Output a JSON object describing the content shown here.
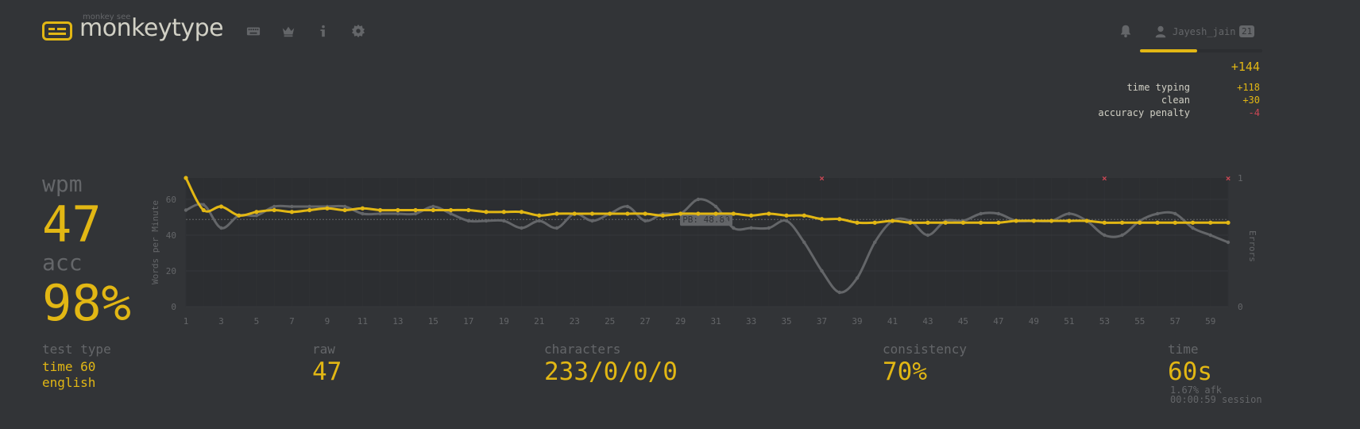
{
  "header": {
    "logo_small": "monkey see",
    "logo_text": "monkeytype",
    "nav_icons": [
      "keyboard-icon",
      "crown-icon",
      "info-icon",
      "gear-icon"
    ],
    "notification_icon": "bell-icon",
    "user_icon": "user-icon",
    "username": "Jayesh_jain",
    "level": "21",
    "xp_progress": 0.47
  },
  "xp": {
    "total": "+144",
    "breakdown": [
      {
        "label": "time typing",
        "value": "+118"
      },
      {
        "label": "clean",
        "value": "+30"
      },
      {
        "label": "accuracy penalty",
        "value": "-4"
      }
    ]
  },
  "result": {
    "wpm_label": "wpm",
    "wpm": "47",
    "acc_label": "acc",
    "acc": "98%",
    "test_type_label": "test type",
    "test_type_lines": [
      "time 60",
      "english"
    ],
    "raw_label": "raw",
    "raw": "47",
    "characters_label": "characters",
    "characters": "233/0/0/0",
    "consistency_label": "consistency",
    "consistency": "70%",
    "time_label": "time",
    "time": "60s",
    "afk": "1.67% afk",
    "session": "00:00:59 session"
  },
  "colors": {
    "bg": "#323437",
    "main": "#e2b714",
    "sub": "#646669",
    "text": "#d1d0c5",
    "error": "#ca4754"
  },
  "chart_data": {
    "type": "line",
    "ylabel": "Words per Minute",
    "y2label": "Errors",
    "ylim": [
      0,
      72
    ],
    "y_ticks": [
      "0",
      "20",
      "40",
      "60"
    ],
    "y2_ticks": [
      "0",
      "1"
    ],
    "x": [
      1,
      2,
      3,
      4,
      5,
      6,
      7,
      8,
      9,
      10,
      11,
      12,
      13,
      14,
      15,
      16,
      17,
      18,
      19,
      20,
      21,
      22,
      23,
      24,
      25,
      26,
      27,
      28,
      29,
      30,
      31,
      32,
      33,
      34,
      35,
      36,
      37,
      38,
      39,
      40,
      41,
      42,
      43,
      44,
      45,
      46,
      47,
      48,
      49,
      50,
      51,
      52,
      53,
      54,
      55,
      56,
      57,
      58,
      59,
      60
    ],
    "x_ticks": [
      "1",
      "3",
      "5",
      "7",
      "9",
      "11",
      "13",
      "15",
      "17",
      "19",
      "21",
      "23",
      "25",
      "27",
      "29",
      "31",
      "33",
      "35",
      "37",
      "39",
      "41",
      "43",
      "45",
      "47",
      "49",
      "51",
      "53",
      "55",
      "57",
      "59"
    ],
    "pb_label": "PB: 48.80",
    "pb_value": 48.8,
    "series": [
      {
        "values": [
          72,
          54,
          56,
          51,
          53,
          54,
          53,
          54,
          55,
          54,
          55,
          54,
          54,
          54,
          54,
          54,
          54,
          53,
          53,
          53,
          51,
          52,
          52,
          52,
          52,
          52,
          52,
          51,
          52,
          52,
          52,
          52,
          51,
          52,
          51,
          51,
          49,
          49,
          47,
          47,
          48,
          47,
          47,
          47,
          47,
          47,
          47,
          48,
          48,
          48,
          48,
          48,
          47,
          47,
          47,
          47,
          47,
          47,
          47,
          47
        ]
      },
      {
        "values": [
          54,
          57,
          44,
          51,
          51,
          56,
          56,
          56,
          56,
          56,
          52,
          52,
          52,
          52,
          56,
          52,
          48,
          48,
          48,
          44,
          48,
          44,
          52,
          48,
          52,
          56,
          48,
          52,
          52,
          60,
          56,
          44,
          44,
          44,
          48,
          36,
          20,
          8,
          16,
          36,
          48,
          48,
          40,
          48,
          48,
          52,
          52,
          48,
          48,
          48,
          52,
          48,
          40,
          40,
          48,
          52,
          52,
          44,
          40,
          36
        ]
      }
    ],
    "error_markers": [
      37,
      53,
      60
    ]
  }
}
